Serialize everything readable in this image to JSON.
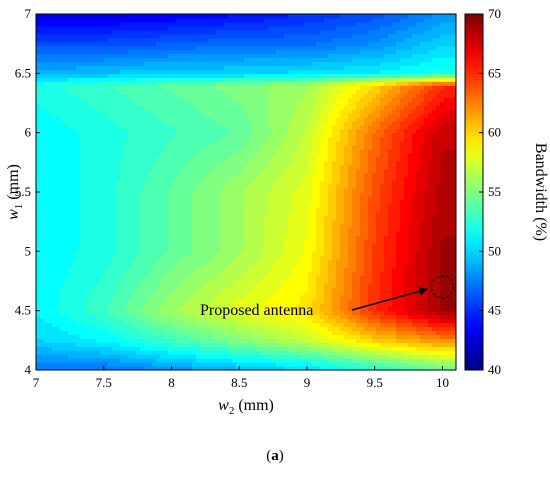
{
  "chart_data": {
    "type": "heatmap",
    "title": "",
    "xlabel": "w2 (mm)",
    "xlabel_main": "w",
    "xlabel_sub": "2",
    "xlabel_unit": " (mm)",
    "ylabel": "w1 (mm)",
    "ylabel_main": "w",
    "ylabel_sub": "1",
    "ylabel_unit": " (mm)",
    "xlim": [
      7,
      10.1
    ],
    "ylim": [
      4,
      7
    ],
    "xticks": [
      "7",
      "7.5",
      "8",
      "8.5",
      "9",
      "9.5",
      "10"
    ],
    "xtick_values": [
      7,
      7.5,
      8,
      8.5,
      9,
      9.5,
      10
    ],
    "yticks": [
      "4",
      "4.5",
      "5",
      "5.5",
      "6",
      "6.5",
      "7"
    ],
    "ytick_values": [
      4,
      4.5,
      5,
      5.5,
      6,
      6.5,
      7
    ],
    "colorbar": {
      "label": "Bandwidth (%)",
      "range": [
        40,
        70
      ],
      "ticks": [
        "40",
        "45",
        "50",
        "55",
        "60",
        "65",
        "70"
      ],
      "tick_values": [
        40,
        45,
        50,
        55,
        60,
        65,
        70
      ],
      "colormap": "jet"
    },
    "x": [
      7,
      7.5,
      8,
      8.5,
      9,
      9.5,
      10,
      10.1
    ],
    "y": [
      4,
      4.25,
      4.5,
      5,
      5.5,
      6,
      6.4,
      6.5,
      6.75,
      7
    ],
    "z": [
      [
        47,
        47,
        48,
        49,
        50,
        52,
        54,
        54
      ],
      [
        50,
        51,
        53,
        55,
        57,
        60,
        62,
        62
      ],
      [
        51,
        53,
        56,
        58,
        59.5,
        65,
        69,
        69
      ],
      [
        51,
        52,
        54,
        56,
        58.5,
        64.5,
        69,
        69
      ],
      [
        51,
        52,
        54,
        56,
        58,
        64,
        68.5,
        68.5
      ],
      [
        51,
        52,
        53,
        54,
        57,
        63,
        68,
        68
      ],
      [
        52,
        53,
        54,
        55,
        56,
        60,
        65,
        65
      ],
      [
        49,
        49.5,
        50,
        50,
        50.5,
        51,
        52,
        52
      ],
      [
        46,
        46,
        46.5,
        47,
        47,
        48,
        50,
        50
      ],
      [
        43,
        43,
        43.5,
        44,
        45,
        46,
        48,
        48
      ]
    ],
    "annotation": {
      "text": "Proposed antenna",
      "marker_x": 10.0,
      "marker_y": 4.7
    }
  },
  "caption": {
    "open": "(",
    "letter": "a",
    "close": ")"
  }
}
